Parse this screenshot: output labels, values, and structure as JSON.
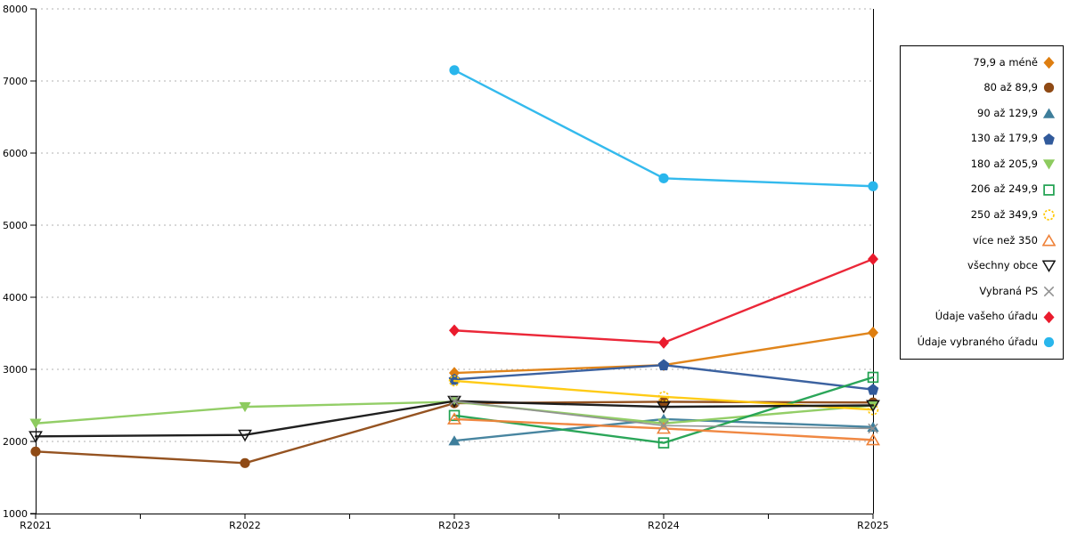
{
  "page": {
    "background": "#FFFFFF"
  },
  "chart_data": {
    "type": "line",
    "title": "",
    "x_categories": [
      "R2021",
      "R2022",
      "R2023",
      "R2024",
      "R2025"
    ],
    "y_ticks": [
      1000,
      2000,
      3000,
      4000,
      5000,
      6000,
      7000,
      8000
    ],
    "ylim": [
      1000,
      8000
    ],
    "grid": "horizontal-dashed",
    "grid_color": "#B0B0B0",
    "axis_color": "#000000",
    "legend_position": "right-box",
    "series": [
      {
        "name": "79,9 a méně",
        "color": "#DE7E10",
        "marker": "diamond",
        "values": [
          null,
          null,
          2950,
          3060,
          3510
        ]
      },
      {
        "name": "80 až 89,9",
        "color": "#8F4A15",
        "marker": "circle",
        "values": [
          1860,
          1700,
          2530,
          2550,
          2540
        ]
      },
      {
        "name": "90 až 129,9",
        "color": "#3E7E9B",
        "marker": "triangle-up",
        "values": [
          null,
          null,
          2010,
          2310,
          2200
        ]
      },
      {
        "name": "130 až 179,9",
        "color": "#315A9B",
        "marker": "pentagon",
        "values": [
          null,
          null,
          2860,
          3060,
          2720
        ]
      },
      {
        "name": "180 až 205,9",
        "color": "#8DCB5F",
        "marker": "triangle-down",
        "values": [
          2250,
          2480,
          2550,
          2250,
          2500
        ]
      },
      {
        "name": "206 až 249,9",
        "color": "#20A150",
        "marker": "square-open",
        "values": [
          null,
          null,
          2360,
          1980,
          2890
        ]
      },
      {
        "name": "250 až 349,9",
        "color": "#FFC80A",
        "marker": "circle-open",
        "values": [
          null,
          null,
          2840,
          2620,
          2440
        ]
      },
      {
        "name": "více než 350",
        "color": "#EF8239",
        "marker": "triangle-up-open",
        "values": [
          null,
          null,
          2310,
          2180,
          2020
        ]
      },
      {
        "name": "všechny obce",
        "color": "#141414",
        "marker": "triangle-down-open",
        "values": [
          2070,
          2090,
          2560,
          2480,
          2500
        ]
      },
      {
        "name": "Vybraná PS",
        "color": "#909090",
        "marker": "x",
        "values": [
          null,
          null,
          2560,
          2220,
          2180
        ]
      },
      {
        "name": "Údaje vašeho úřadu",
        "color": "#EA1B2D",
        "marker": "diamond",
        "values": [
          null,
          null,
          3540,
          3370,
          4530
        ]
      },
      {
        "name": "Údaje vybraného úřadu",
        "color": "#29B6EC",
        "marker": "circle",
        "values": [
          null,
          null,
          7150,
          5650,
          5540
        ]
      }
    ]
  }
}
